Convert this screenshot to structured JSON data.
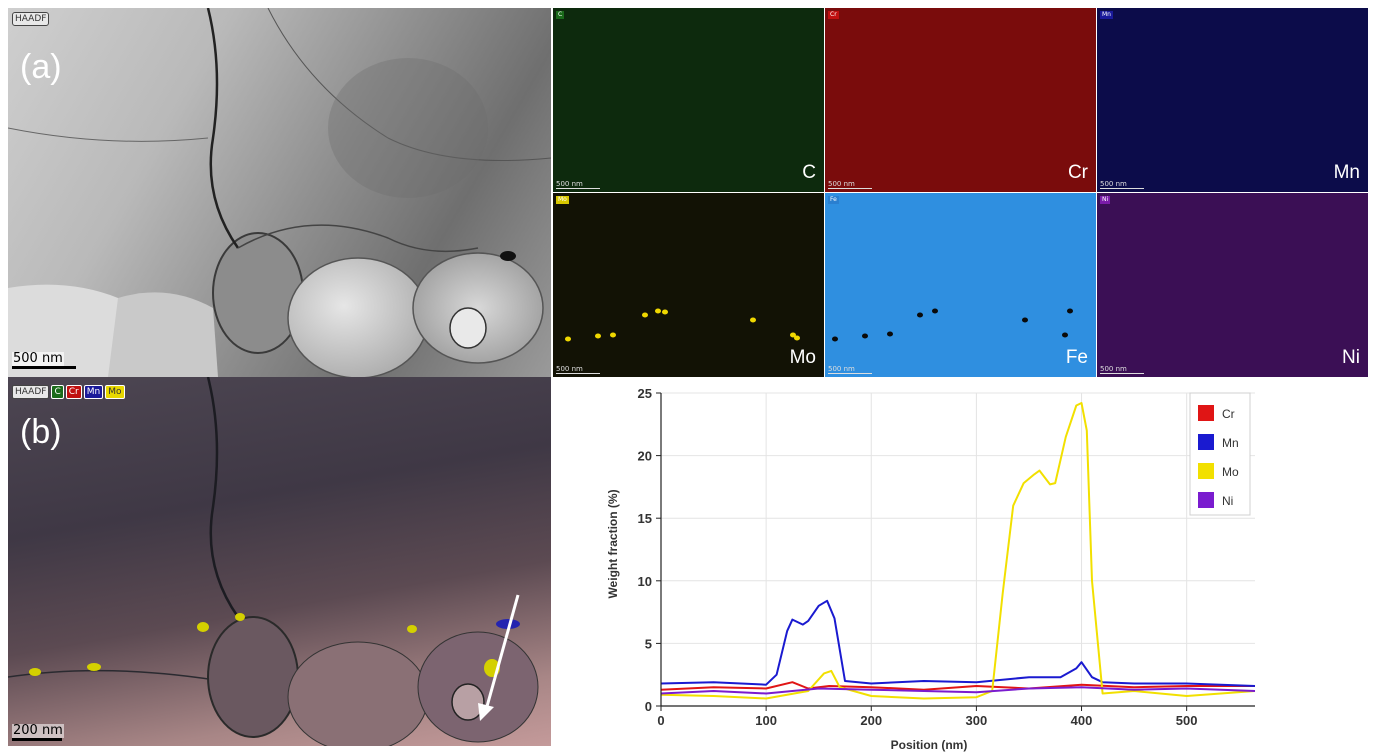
{
  "panel_a": {
    "letter": "(a)",
    "haadf_label": "HAADF",
    "scale_bar": "500 nm",
    "maps": [
      {
        "tag": "C",
        "element": "C",
        "scale": "500 nm",
        "color": "#0d2a0d",
        "tag_color": "#1b6b1b"
      },
      {
        "tag": "Cr",
        "element": "Cr",
        "scale": "500 nm",
        "color": "#7a0c0c",
        "tag_color": "#c01010"
      },
      {
        "tag": "Mn",
        "element": "Mn",
        "scale": "500 nm",
        "color": "#0c0c4a",
        "tag_color": "#1a1a9a"
      },
      {
        "tag": "Mo",
        "element": "Mo",
        "scale": "500 nm",
        "color": "#121205",
        "tag_color": "#d8c800"
      },
      {
        "tag": "Fe",
        "element": "Fe",
        "scale": "500 nm",
        "color": "#2f8fe0",
        "tag_color": "#2a7fd0"
      },
      {
        "tag": "Ni",
        "element": "Ni",
        "scale": "500 nm",
        "color": "#3b0f55",
        "tag_color": "#7a1ca8"
      }
    ]
  },
  "panel_b": {
    "letter": "(b)",
    "haadf_label": "HAADF",
    "legend_tags": [
      {
        "label": "C",
        "bg": "#1b6b1b",
        "fg": "#ffffff"
      },
      {
        "label": "Cr",
        "bg": "#c01010",
        "fg": "#ffffff"
      },
      {
        "label": "Mn",
        "bg": "#1a1a9a",
        "fg": "#ffffff"
      },
      {
        "label": "Mo",
        "bg": "#e8d800",
        "fg": "#333333"
      }
    ],
    "scale_bar": "200 nm"
  },
  "chart_data": {
    "type": "line",
    "xlabel": "Position (nm)",
    "ylabel": "Weight fraction (%)",
    "xlim": [
      0,
      565
    ],
    "ylim": [
      0,
      25
    ],
    "xticks": [
      0,
      100,
      200,
      300,
      400,
      500
    ],
    "yticks": [
      0,
      5,
      10,
      15,
      20,
      25
    ],
    "legend_position": "top-right",
    "series": [
      {
        "name": "Cr",
        "color": "#e01515",
        "x": [
          0,
          50,
          100,
          125,
          140,
          160,
          200,
          250,
          300,
          350,
          400,
          450,
          500,
          565
        ],
        "y": [
          1.3,
          1.5,
          1.4,
          1.9,
          1.4,
          1.6,
          1.5,
          1.3,
          1.6,
          1.4,
          1.7,
          1.5,
          1.6,
          1.6
        ]
      },
      {
        "name": "Mn",
        "color": "#1a1ad0",
        "x": [
          0,
          50,
          100,
          110,
          120,
          125,
          135,
          140,
          150,
          158,
          165,
          175,
          200,
          250,
          300,
          350,
          380,
          395,
          400,
          410,
          420,
          450,
          500,
          565
        ],
        "y": [
          1.8,
          1.9,
          1.7,
          2.5,
          6.0,
          6.9,
          6.5,
          6.8,
          8.0,
          8.4,
          7.0,
          2.0,
          1.8,
          2.0,
          1.9,
          2.3,
          2.3,
          3.0,
          3.5,
          2.3,
          1.9,
          1.8,
          1.8,
          1.6
        ]
      },
      {
        "name": "Mo",
        "color": "#f2e000",
        "x": [
          0,
          50,
          100,
          140,
          155,
          162,
          170,
          200,
          250,
          300,
          315,
          325,
          335,
          345,
          355,
          360,
          370,
          375,
          385,
          395,
          400,
          405,
          410,
          420,
          450,
          500,
          565
        ],
        "y": [
          0.9,
          0.8,
          0.6,
          1.2,
          2.6,
          2.8,
          1.5,
          0.8,
          0.6,
          0.7,
          1.2,
          9.0,
          16.0,
          17.8,
          18.5,
          18.8,
          17.7,
          17.8,
          21.5,
          24.0,
          24.2,
          22.0,
          10.0,
          1.0,
          1.2,
          0.8,
          1.2
        ]
      },
      {
        "name": "Ni",
        "color": "#7a1ccf",
        "x": [
          0,
          50,
          100,
          150,
          200,
          250,
          300,
          350,
          400,
          450,
          500,
          565
        ],
        "y": [
          1.0,
          1.2,
          1.0,
          1.4,
          1.3,
          1.2,
          1.1,
          1.4,
          1.5,
          1.3,
          1.4,
          1.2
        ]
      }
    ]
  }
}
